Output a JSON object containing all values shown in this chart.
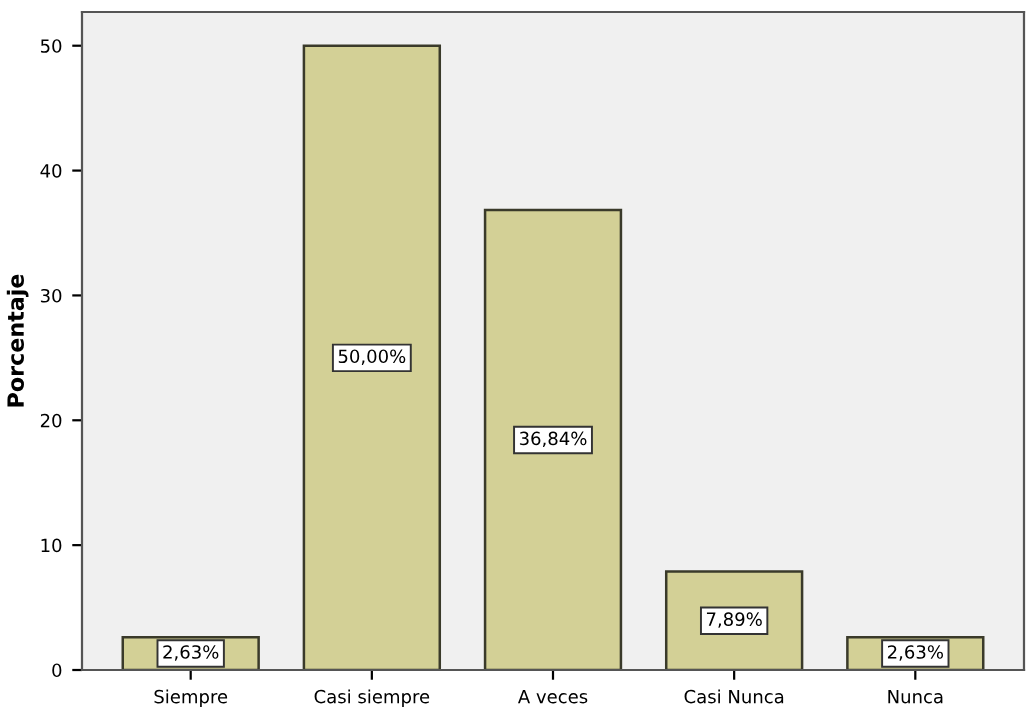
{
  "chart_data": {
    "type": "bar",
    "ylabel": "Porcentaje",
    "categories": [
      "Siempre",
      "Casi siempre",
      "A veces",
      "Casi Nunca",
      "Nunca"
    ],
    "values": [
      2.63,
      50.0,
      36.84,
      7.89,
      2.63
    ],
    "value_labels": [
      "2,63%",
      "50,00%",
      "36,84%",
      "7,89%",
      "2,63%"
    ],
    "color": "#d3d096",
    "ylim": [
      0,
      52.7
    ],
    "yticks": [
      0,
      10,
      20,
      30,
      40,
      50
    ],
    "grid": false
  }
}
